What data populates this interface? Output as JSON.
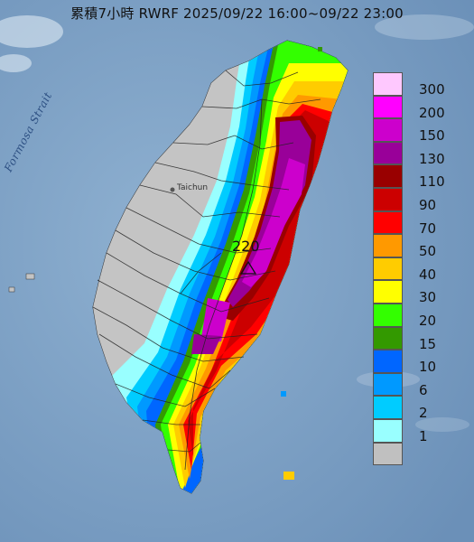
{
  "title": "累積7小時 RWRF 2025/09/22 16:00~09/22 23:00",
  "map": {
    "strait_label": "Formosa Strait",
    "city_label": "Taichun",
    "peak_value": "220"
  },
  "legend": {
    "items": [
      {
        "label": "300",
        "color": "#fec8fe"
      },
      {
        "label": "200",
        "color": "#ff00ff"
      },
      {
        "label": "150",
        "color": "#cc00cc"
      },
      {
        "label": "130",
        "color": "#990099"
      },
      {
        "label": "110",
        "color": "#990000"
      },
      {
        "label": "90",
        "color": "#cc0000"
      },
      {
        "label": "70",
        "color": "#ff0000"
      },
      {
        "label": "50",
        "color": "#ff9900"
      },
      {
        "label": "40",
        "color": "#ffcc00"
      },
      {
        "label": "30",
        "color": "#ffff00"
      },
      {
        "label": "20",
        "color": "#33ff00"
      },
      {
        "label": "15",
        "color": "#339900"
      },
      {
        "label": "10",
        "color": "#0066ff"
      },
      {
        "label": "6",
        "color": "#0099ff"
      },
      {
        "label": "2",
        "color": "#00ccff"
      },
      {
        "label": "1",
        "color": "#99ffff"
      },
      {
        "label": "",
        "color": "#c0c0c0"
      }
    ]
  }
}
